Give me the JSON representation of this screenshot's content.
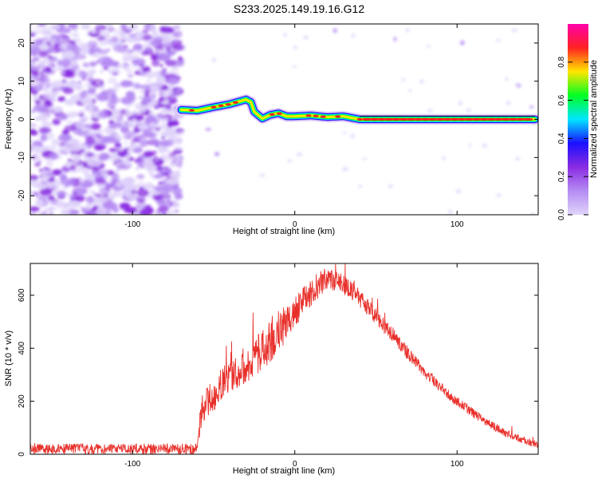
{
  "title": "S233.2025.149.19.16.G12",
  "chart_data": [
    {
      "type": "heatmap",
      "xlabel": "Height of straight line (km)",
      "ylabel": "Frequency (Hz)",
      "xlim": [
        -163,
        150
      ],
      "ylim": [
        -25,
        25
      ],
      "x_ticks": [
        -100,
        0,
        100
      ],
      "y_ticks": [
        -20,
        -10,
        0,
        10,
        20
      ],
      "noise_region_x": [
        -163,
        -70
      ],
      "ridge": {
        "x": [
          -70,
          -60,
          -50,
          -40,
          -30,
          -27,
          -25,
          -20,
          -15,
          -10,
          -5,
          0,
          10,
          20,
          30,
          40,
          50,
          60,
          80,
          100,
          120,
          140,
          148
        ],
        "y": [
          2.5,
          2.3,
          3.2,
          4.0,
          5.2,
          4.5,
          2.0,
          0.2,
          1.2,
          1.6,
          0.8,
          0.8,
          1.0,
          0.6,
          0.8,
          0.0,
          0.0,
          0.0,
          0.0,
          0.0,
          0.0,
          0.0,
          0.0
        ]
      },
      "colorbar": {
        "label": "Normalized spectral amplitude",
        "range": [
          0,
          1
        ],
        "ticks": [
          0.0,
          0.2,
          0.4,
          0.6,
          0.8
        ]
      },
      "colors": [
        "#e0d4fa",
        "#b58cf3",
        "#8a2be2",
        "#1a10ff",
        "#00e6ff",
        "#00ff22",
        "#ffe600",
        "#ff2222",
        "#ff00aa"
      ]
    },
    {
      "type": "line",
      "xlabel": "Height of straight line (km)",
      "ylabel": "SNR (10 * v/v)",
      "xlim": [
        -163,
        150
      ],
      "ylim": [
        0,
        720
      ],
      "x_ticks": [
        -100,
        0,
        100
      ],
      "y_ticks": [
        0,
        200,
        400,
        600
      ],
      "series": [
        {
          "color": "#e8302b",
          "x": [
            -163,
            -140,
            -120,
            -100,
            -80,
            -65,
            -60,
            -58,
            -55,
            -50,
            -45,
            -40,
            -35,
            -30,
            -25,
            -20,
            -15,
            -10,
            -5,
            0,
            5,
            10,
            15,
            20,
            25,
            30,
            35,
            40,
            50,
            60,
            70,
            80,
            90,
            100,
            110,
            120,
            130,
            140,
            150
          ],
          "y": [
            20,
            20,
            20,
            20,
            20,
            20,
            20,
            150,
            200,
            220,
            270,
            290,
            310,
            330,
            360,
            400,
            420,
            450,
            500,
            530,
            580,
            610,
            640,
            660,
            650,
            640,
            620,
            590,
            520,
            450,
            380,
            310,
            250,
            200,
            155,
            115,
            80,
            55,
            35
          ],
          "noise": [
            20,
            20,
            20,
            20,
            20,
            20,
            20,
            60,
            60,
            60,
            60,
            60,
            60,
            60,
            70,
            80,
            80,
            80,
            70,
            60,
            55,
            50,
            50,
            45,
            45,
            40,
            35,
            35,
            30,
            28,
            25,
            22,
            20,
            20,
            18,
            16,
            14,
            14,
            14
          ]
        }
      ]
    }
  ]
}
